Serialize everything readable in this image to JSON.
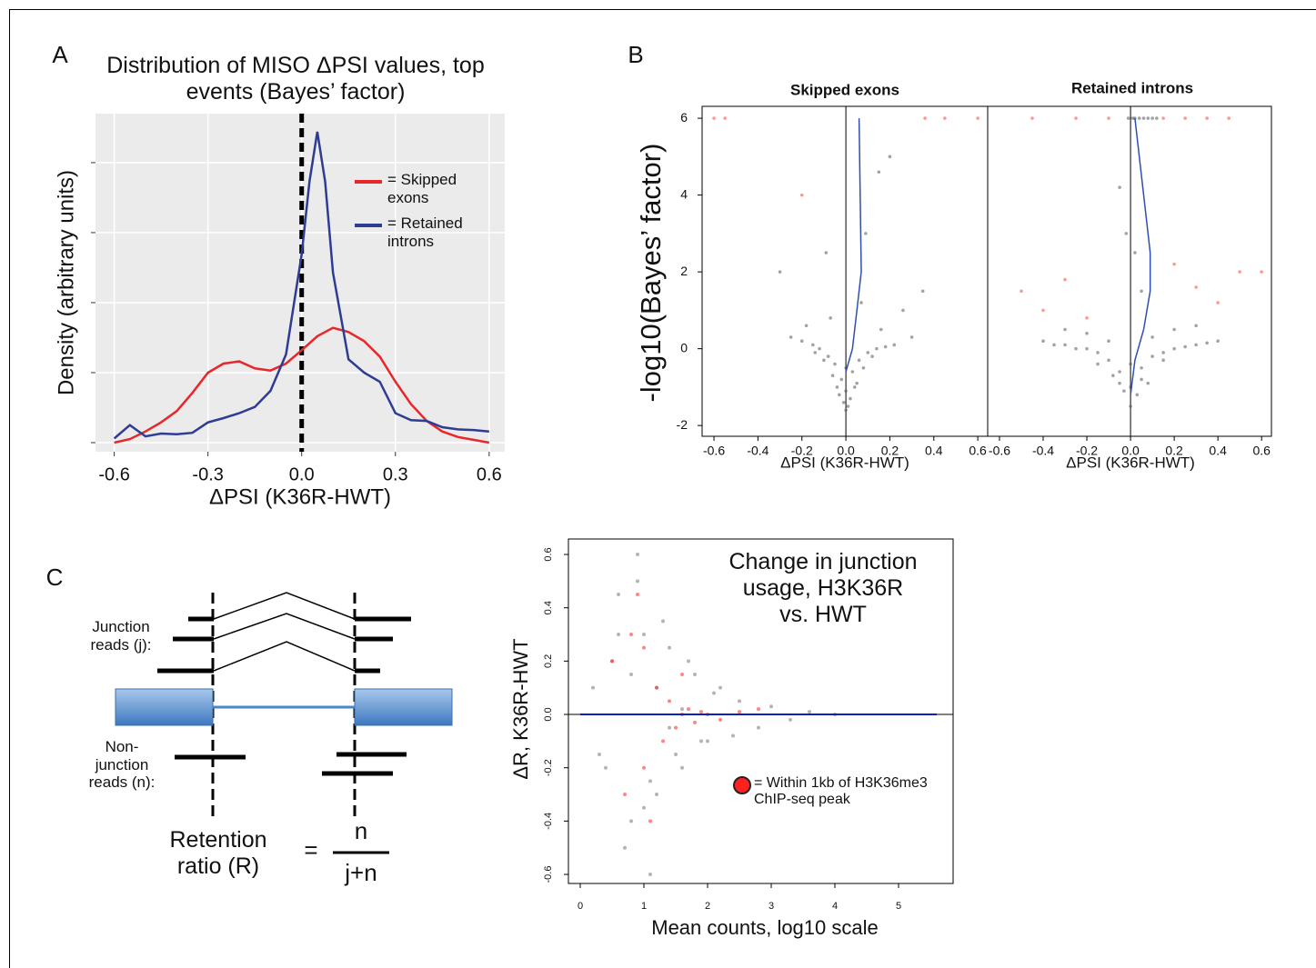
{
  "panel_labels": [
    "A",
    "B",
    "C"
  ],
  "chart_data": [
    {
      "type": "line",
      "title": "Distribution of MISO ΔPSI values, top events (Bayes’ factor)",
      "xlabel": "ΔPSI (K36R-HWT)",
      "ylabel": "Density (arbitrary units)",
      "xlim": [
        -0.66,
        0.65
      ],
      "ylim": [
        -0.13,
        4.7
      ],
      "xticks": [
        -0.6,
        -0.3,
        {
          "value": 0,
          "label": "0.0"
        },
        0.3,
        0.6
      ],
      "yticks": [
        0,
        1,
        2,
        3,
        4
      ],
      "ytick_labels": false,
      "grid": true,
      "vlines": [
        0
      ],
      "series": [
        {
          "name": "= Skipped exons",
          "color": "#e8272a",
          "x": [
            -0.6,
            -0.55,
            -0.5,
            -0.45,
            -0.4,
            -0.35,
            -0.3,
            -0.25,
            -0.2,
            -0.15,
            -0.1,
            -0.05,
            0,
            0.05,
            0.1,
            0.15,
            0.2,
            0.25,
            0.3,
            0.35,
            0.4,
            0.45,
            0.5,
            0.55,
            0.6
          ],
          "values": [
            0,
            0.05,
            0.16,
            0.29,
            0.45,
            0.71,
            1.0,
            1.13,
            1.16,
            1.06,
            1.03,
            1.13,
            1.32,
            1.52,
            1.64,
            1.58,
            1.45,
            1.23,
            0.87,
            0.55,
            0.31,
            0.16,
            0.08,
            0.04,
            0
          ]
        },
        {
          "name": "= Retained introns",
          "color": "#2e3c92",
          "x": [
            -0.6,
            -0.55,
            -0.5,
            -0.45,
            -0.4,
            -0.35,
            -0.3,
            -0.25,
            -0.2,
            -0.15,
            -0.1,
            -0.05,
            0,
            0.025,
            0.05,
            0.075,
            0.1,
            0.15,
            0.2,
            0.25,
            0.3,
            0.35,
            0.4,
            0.45,
            0.5,
            0.55,
            0.6
          ],
          "values": [
            0.06,
            0.25,
            0.09,
            0.13,
            0.12,
            0.14,
            0.29,
            0.35,
            0.42,
            0.51,
            0.74,
            1.26,
            2.69,
            3.73,
            4.44,
            3.73,
            2.43,
            1.19,
            1.0,
            0.87,
            0.42,
            0.32,
            0.31,
            0.22,
            0.19,
            0.18,
            0.16
          ]
        }
      ]
    },
    {
      "type": "scatter",
      "title": "Skipped exons",
      "xlabel": "ΔPSI (K36R-HWT)",
      "ylabel": "-log10(Bayes’ factor)",
      "xlim": [
        -0.654,
        0.645
      ],
      "ylim": [
        -2.28,
        6.31
      ],
      "xticks": [
        -0.6,
        -0.4,
        -0.2,
        {
          "value": 0,
          "label": "0.0"
        },
        0.2,
        0.4,
        0.6
      ],
      "yticks": [
        -2,
        0,
        2,
        4,
        6
      ],
      "vlines": [
        0
      ],
      "series": [
        {
          "color": "#555555",
          "x": [
            -0.02,
            0.03,
            -0.05,
            0.06,
            -0.08,
            0.1,
            -0.12,
            0.14,
            -0.15,
            0.18,
            -0.2,
            0.22,
            -0.25,
            0.3,
            -0.03,
            0.04,
            -0.06,
            0.08,
            -0.1,
            0.12,
            0.01,
            -0.01,
            0.02,
            -0.04,
            0.05,
            0,
            0,
            0,
            0.07,
            -0.07,
            0.16,
            -0.18,
            0.26,
            -0.3,
            0.35,
            0.09,
            -0.09,
            0.15,
            0.2,
            -0.14
          ],
          "values": [
            -0.8,
            -0.6,
            -0.4,
            -0.3,
            -0.2,
            -0.1,
            0,
            0,
            0.1,
            0.05,
            0.2,
            0.1,
            0.3,
            0.3,
            -1.2,
            -1.0,
            -0.7,
            -0.5,
            -0.3,
            -0.2,
            -1.5,
            -1.4,
            -1.3,
            -1.0,
            -0.9,
            -1.6,
            -1.1,
            -0.5,
            1.2,
            0.8,
            0.5,
            0.6,
            1.0,
            2.0,
            1.5,
            3.0,
            2.5,
            4.6,
            5.0,
            -0.1
          ]
        },
        {
          "color": "#ff4040",
          "x": [
            -0.2,
            0.36,
            -0.6,
            0.6,
            -0.55,
            0.45
          ],
          "values": [
            4.0,
            6,
            6,
            6,
            6,
            6
          ]
        },
        {
          "color": "#2e4fb0",
          "mode": "line",
          "x": [
            0,
            0.03,
            0.05,
            0.07,
            0.065,
            0.06
          ],
          "values": [
            -0.6,
            0,
            1,
            2,
            4,
            6
          ]
        }
      ]
    },
    {
      "type": "scatter",
      "title": "Retained introns",
      "xlabel": "ΔPSI (K36R-HWT)",
      "xlim": [
        -0.654,
        0.645
      ],
      "ylim": [
        -2.28,
        6.31
      ],
      "xticks": [
        -0.6,
        -0.4,
        -0.2,
        {
          "value": 0,
          "label": "0.0"
        },
        0.2,
        0.4,
        0.6
      ],
      "vlines": [
        0
      ],
      "series": [
        {
          "color": "#555555",
          "x": [
            -0.4,
            -0.35,
            -0.3,
            -0.25,
            -0.2,
            -0.15,
            -0.1,
            -0.05,
            0.05,
            0.1,
            0.15,
            0.2,
            0.25,
            0.3,
            0.35,
            0.4,
            -0.3,
            -0.2,
            -0.1,
            0.1,
            0.2,
            0.3,
            -0.15,
            -0.05,
            0.05,
            0.15,
            -0.08,
            -0.03,
            0,
            0.03,
            0.08,
            0,
            0,
            0.01,
            -0.01,
            0.02,
            0.04,
            0.06,
            0.08,
            0.1,
            0.12,
            0.02,
            -0.02,
            0.05,
            -0.05
          ],
          "values": [
            0.2,
            0.1,
            0.1,
            0,
            0,
            -0.1,
            -0.3,
            -0.6,
            -0.5,
            -0.2,
            -0.1,
            0,
            0.05,
            0.1,
            0.15,
            0.2,
            0.5,
            0.4,
            0.2,
            0.3,
            0.5,
            0.6,
            -0.4,
            -0.9,
            -0.8,
            -0.3,
            -0.7,
            -1.1,
            -1.5,
            -1.2,
            -0.9,
            -1.0,
            -0.4,
            6,
            6,
            6,
            6,
            6,
            6,
            6,
            6,
            2.5,
            3.0,
            1.5,
            4.2
          ]
        },
        {
          "color": "#ff4040",
          "x": [
            -0.5,
            -0.4,
            -0.3,
            -0.2,
            0.2,
            0.3,
            0.4,
            0.5,
            0.6,
            -0.45,
            0.35,
            -0.25,
            0.25,
            -0.1,
            0.15,
            0.45
          ],
          "values": [
            1.5,
            1.0,
            1.8,
            0.8,
            2.2,
            1.6,
            1.2,
            2.0,
            2.0,
            6,
            6,
            6,
            6,
            6,
            6,
            6
          ]
        },
        {
          "color": "#2e4fb0",
          "mode": "line",
          "x": [
            0,
            0.02,
            0.06,
            0.09,
            0.09,
            0.06,
            0.03,
            0.02
          ],
          "values": [
            -1.2,
            -0.3,
            0.5,
            1.5,
            2.5,
            4,
            5.5,
            6
          ]
        }
      ]
    },
    {
      "type": "scatter",
      "annotation": "Change in junction usage, H3K36R vs. HWT",
      "xlabel": "Mean counts, log10 scale",
      "ylabel": "ΔR, K36R-HWT",
      "xlim": [
        -0.186,
        5.857
      ],
      "ylim": [
        -0.634,
        0.658
      ],
      "xticks": [
        0,
        1,
        2,
        3,
        4,
        5
      ],
      "yticks": [
        -0.6,
        -0.4,
        -0.2,
        {
          "value": 0,
          "label": "0.0"
        },
        0.2,
        0.4,
        0.6
      ],
      "hlines": [
        0
      ],
      "series": [
        {
          "color": "#777777",
          "x": [
            0.2,
            0.4,
            0.6,
            0.8,
            1.0,
            1.2,
            1.4,
            1.6,
            1.8,
            2.0,
            2.2,
            2.5,
            2.8,
            3.0,
            3.3,
            3.6,
            4.0,
            0.5,
            0.7,
            0.9,
            1.1,
            1.3,
            1.5,
            1.7,
            1.9,
            2.1,
            0.6,
            0.8,
            1.0,
            1.2,
            1.4,
            0.3,
            1.6,
            2.4,
            0.9,
            1.1
          ],
          "values": [
            0.1,
            -0.2,
            0.45,
            -0.4,
            0.3,
            -0.3,
            0.25,
            -0.2,
            0.15,
            -0.1,
            0.1,
            0.05,
            -0.05,
            0.03,
            -0.02,
            0.01,
            0,
            0.2,
            -0.5,
            0.5,
            -0.25,
            0.35,
            -0.15,
            0.2,
            -0.1,
            0.08,
            0.3,
            0.15,
            -0.35,
            0.1,
            -0.05,
            -0.15,
            0.02,
            -0.08,
            0.6,
            -0.6
          ]
        },
        {
          "name": "= Within 1kb of H3K36me3 ChIP-seq peak",
          "color": "#ff2020",
          "x": [
            0.5,
            0.8,
            1.0,
            1.2,
            1.4,
            1.5,
            1.6,
            1.7,
            1.8,
            1.9,
            2.0,
            2.2,
            2.5,
            0.9,
            1.3,
            1.1,
            0.7,
            1.6,
            2.8,
            1.0
          ],
          "values": [
            0.2,
            0.3,
            -0.2,
            0.1,
            0.05,
            -0.05,
            0,
            0.02,
            -0.03,
            0.01,
            0,
            -0.02,
            0.01,
            0.45,
            -0.1,
            -0.4,
            -0.3,
            0.15,
            0.02,
            0.25
          ]
        },
        {
          "color": "#1020c0",
          "mode": "line",
          "x": [
            0,
            1,
            2,
            3,
            4,
            5.6
          ],
          "values": [
            0,
            0,
            0,
            0,
            0,
            0
          ]
        }
      ]
    }
  ],
  "diagram": {
    "junction_label": "Junction reads (j):",
    "nonjunction_label": "Non-junction reads (n):",
    "ratio_label": "Retention ratio (R)",
    "equals": "=",
    "numerator": "n",
    "denominator": "j+n"
  }
}
